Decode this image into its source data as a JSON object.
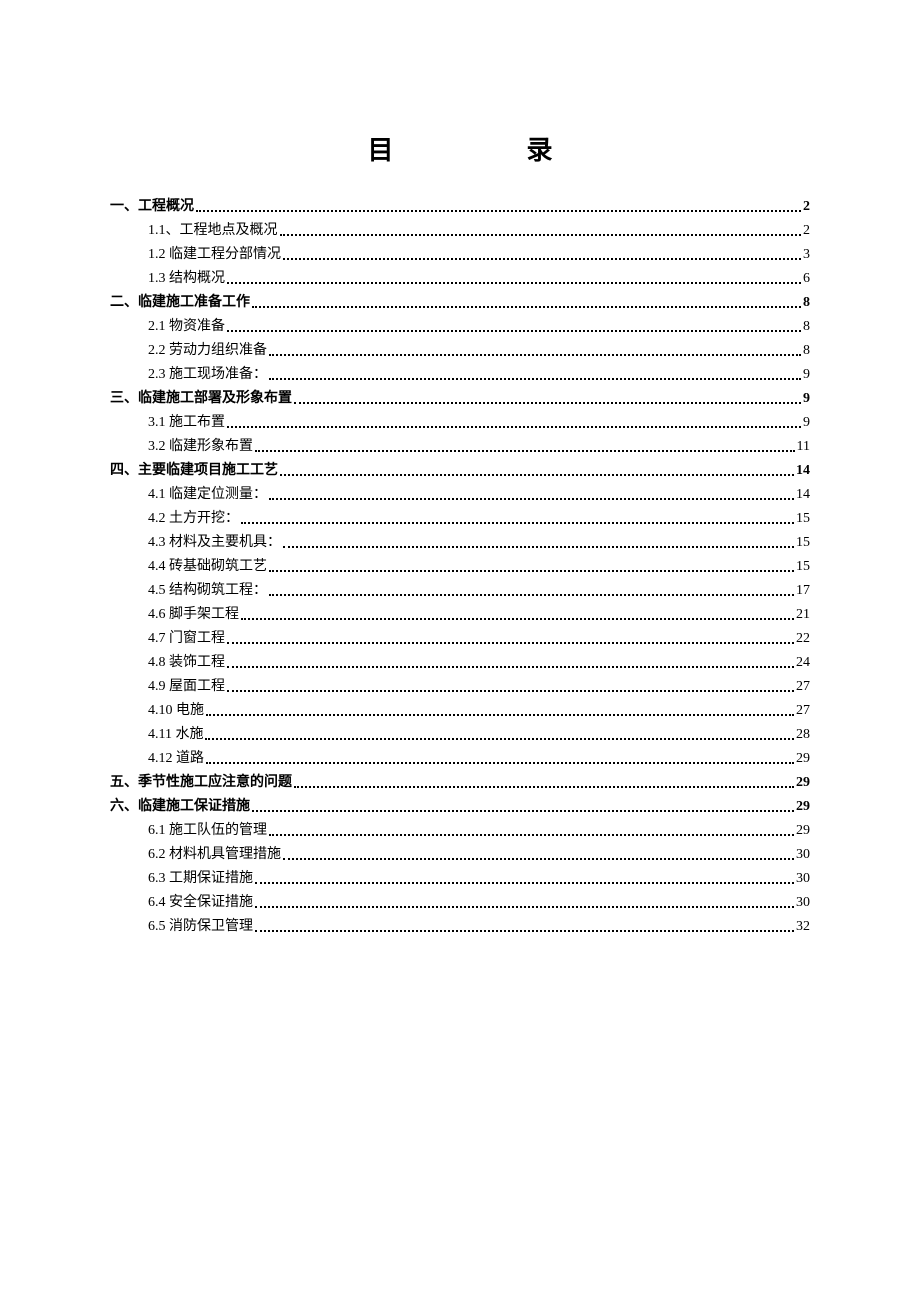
{
  "title": {
    "char1": "目",
    "char2": "录"
  },
  "toc": [
    {
      "level": 1,
      "label": "一、工程概况",
      "page": "2"
    },
    {
      "level": 2,
      "label": "1.1、工程地点及概况",
      "page": "2"
    },
    {
      "level": 2,
      "label": "1.2 临建工程分部情况",
      "page": "3"
    },
    {
      "level": 2,
      "label": "1.3  结构概况",
      "page": "6"
    },
    {
      "level": 1,
      "label": "二、临建施工准备工作",
      "page": "8"
    },
    {
      "level": 2,
      "label": "2.1  物资准备",
      "page": "8"
    },
    {
      "level": 2,
      "label": "2.2  劳动力组织准备",
      "page": "8"
    },
    {
      "level": 2,
      "label": "2.3  施工现场准备：",
      "page": "9"
    },
    {
      "level": 1,
      "label": "三、临建施工部署及形象布置",
      "page": "9"
    },
    {
      "level": 2,
      "label": "3.1  施工布置",
      "page": "9"
    },
    {
      "level": 2,
      "label": "3.2  临建形象布置",
      "page": "11"
    },
    {
      "level": 1,
      "label": "四、主要临建项目施工工艺",
      "page": "14"
    },
    {
      "level": 2,
      "label": "4.1 临建定位测量：",
      "page": "14"
    },
    {
      "level": 2,
      "label": "4.2 土方开挖：",
      "page": "15"
    },
    {
      "level": 2,
      "label": "4.3 材料及主要机具：",
      "page": "15"
    },
    {
      "level": 2,
      "label": "4.4  砖基础砌筑工艺",
      "page": "15"
    },
    {
      "level": 2,
      "label": "4.5  结构砌筑工程：",
      "page": "17"
    },
    {
      "level": 2,
      "label": "4.6 脚手架工程",
      "page": "21"
    },
    {
      "level": 2,
      "label": "4.7  门窗工程",
      "page": "22"
    },
    {
      "level": 2,
      "label": "4.8  装饰工程",
      "page": "24"
    },
    {
      "level": 2,
      "label": "4.9 屋面工程",
      "page": "27"
    },
    {
      "level": 2,
      "label": "4.10  电施",
      "page": "27"
    },
    {
      "level": 2,
      "label": "4.11  水施",
      "page": "28"
    },
    {
      "level": 2,
      "label": "4.12  道路",
      "page": "29"
    },
    {
      "level": 1,
      "label": "五、季节性施工应注意的问题",
      "page": "29"
    },
    {
      "level": 1,
      "label": "六、临建施工保证措施",
      "page": "29"
    },
    {
      "level": 2,
      "label": "6.1  施工队伍的管理",
      "page": "29"
    },
    {
      "level": 2,
      "label": "6.2  材料机具管理措施",
      "page": "30"
    },
    {
      "level": 2,
      "label": "6.3  工期保证措施",
      "page": "30"
    },
    {
      "level": 2,
      "label": "6.4 安全保证措施",
      "page": "30"
    },
    {
      "level": 2,
      "label": "6.5  消防保卫管理",
      "page": "32"
    }
  ],
  "colors": {
    "text": "#000000",
    "background": "#ffffff"
  },
  "typography": {
    "title_fontsize": 26,
    "body_fontsize": 14,
    "font_family": "SimSun"
  }
}
